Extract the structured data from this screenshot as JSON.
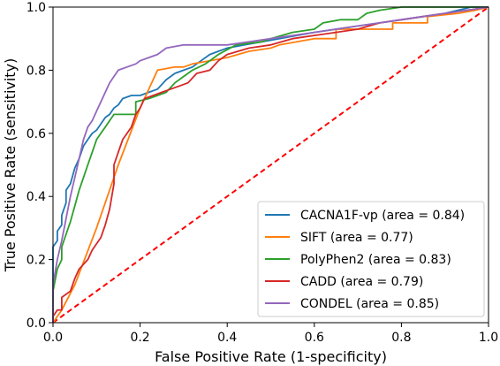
{
  "chart_data": {
    "type": "line",
    "title": "",
    "xlabel": "False Positive Rate (1-specificity)",
    "ylabel": "True Positive Rate (sensitivity)",
    "xlim": [
      0.0,
      1.0
    ],
    "ylim": [
      0.0,
      1.0
    ],
    "xticks": [
      "0.0",
      "0.2",
      "0.4",
      "0.6",
      "0.8",
      "1.0"
    ],
    "yticks": [
      "0.0",
      "0.2",
      "0.4",
      "0.6",
      "0.8",
      "1.0"
    ],
    "grid": false,
    "legend_position": "bottom-right",
    "diagonal": {
      "color": "#ff0000",
      "style": "dashed",
      "points": [
        [
          0,
          0
        ],
        [
          1,
          1
        ]
      ]
    },
    "series": [
      {
        "name": "CACNA1F-vp (area = 0.84)",
        "color": "#1f77b4",
        "points": [
          [
            0,
            0
          ],
          [
            0,
            0.24
          ],
          [
            0.01,
            0.26
          ],
          [
            0.01,
            0.29
          ],
          [
            0.02,
            0.31
          ],
          [
            0.02,
            0.34
          ],
          [
            0.03,
            0.38
          ],
          [
            0.03,
            0.42
          ],
          [
            0.04,
            0.44
          ],
          [
            0.05,
            0.49
          ],
          [
            0.06,
            0.52
          ],
          [
            0.07,
            0.56
          ],
          [
            0.08,
            0.58
          ],
          [
            0.09,
            0.6
          ],
          [
            0.1,
            0.61
          ],
          [
            0.11,
            0.63
          ],
          [
            0.12,
            0.65
          ],
          [
            0.13,
            0.66
          ],
          [
            0.14,
            0.68
          ],
          [
            0.15,
            0.69
          ],
          [
            0.16,
            0.71
          ],
          [
            0.18,
            0.72
          ],
          [
            0.2,
            0.72
          ],
          [
            0.22,
            0.73
          ],
          [
            0.24,
            0.74
          ],
          [
            0.26,
            0.77
          ],
          [
            0.28,
            0.79
          ],
          [
            0.3,
            0.8
          ],
          [
            0.32,
            0.81
          ],
          [
            0.34,
            0.83
          ],
          [
            0.36,
            0.85
          ],
          [
            0.38,
            0.86
          ],
          [
            0.4,
            0.87
          ],
          [
            0.44,
            0.88
          ],
          [
            0.48,
            0.89
          ],
          [
            0.52,
            0.9
          ],
          [
            0.56,
            0.91
          ],
          [
            0.6,
            0.92
          ],
          [
            0.65,
            0.93
          ],
          [
            0.7,
            0.94
          ],
          [
            0.75,
            0.95
          ],
          [
            0.8,
            0.96
          ],
          [
            0.85,
            0.97
          ],
          [
            0.9,
            0.98
          ],
          [
            0.93,
            0.99
          ],
          [
            0.96,
            1.0
          ],
          [
            1,
            1
          ]
        ]
      },
      {
        "name": "SIFT (area = 0.77)",
        "color": "#ff7f0e",
        "points": [
          [
            0,
            0
          ],
          [
            0.02,
            0.04
          ],
          [
            0.05,
            0.12
          ],
          [
            0.1,
            0.3
          ],
          [
            0.15,
            0.5
          ],
          [
            0.2,
            0.68
          ],
          [
            0.24,
            0.8
          ],
          [
            0.28,
            0.81
          ],
          [
            0.3,
            0.81
          ],
          [
            0.32,
            0.82
          ],
          [
            0.36,
            0.83
          ],
          [
            0.4,
            0.84
          ],
          [
            0.45,
            0.86
          ],
          [
            0.5,
            0.87
          ],
          [
            0.52,
            0.88
          ],
          [
            0.56,
            0.89
          ],
          [
            0.6,
            0.9
          ],
          [
            0.65,
            0.9
          ],
          [
            0.65,
            0.93
          ],
          [
            0.7,
            0.93
          ],
          [
            0.78,
            0.93
          ],
          [
            0.78,
            0.95
          ],
          [
            0.86,
            0.95
          ],
          [
            0.86,
            0.97
          ],
          [
            0.93,
            0.98
          ],
          [
            0.97,
            0.99
          ],
          [
            1,
            1
          ]
        ]
      },
      {
        "name": "PolyPhen2 (area = 0.83)",
        "color": "#2ca02c",
        "points": [
          [
            0,
            0
          ],
          [
            0,
            0.1
          ],
          [
            0.01,
            0.17
          ],
          [
            0.02,
            0.2
          ],
          [
            0.02,
            0.24
          ],
          [
            0.03,
            0.28
          ],
          [
            0.04,
            0.32
          ],
          [
            0.05,
            0.37
          ],
          [
            0.06,
            0.42
          ],
          [
            0.07,
            0.46
          ],
          [
            0.08,
            0.5
          ],
          [
            0.09,
            0.54
          ],
          [
            0.1,
            0.58
          ],
          [
            0.11,
            0.6
          ],
          [
            0.12,
            0.62
          ],
          [
            0.13,
            0.64
          ],
          [
            0.14,
            0.66
          ],
          [
            0.19,
            0.66
          ],
          [
            0.19,
            0.7
          ],
          [
            0.22,
            0.71
          ],
          [
            0.24,
            0.72
          ],
          [
            0.26,
            0.73
          ],
          [
            0.28,
            0.76
          ],
          [
            0.3,
            0.78
          ],
          [
            0.32,
            0.8
          ],
          [
            0.35,
            0.82
          ],
          [
            0.38,
            0.85
          ],
          [
            0.42,
            0.88
          ],
          [
            0.48,
            0.89
          ],
          [
            0.5,
            0.9
          ],
          [
            0.55,
            0.92
          ],
          [
            0.6,
            0.93
          ],
          [
            0.62,
            0.95
          ],
          [
            0.66,
            0.96
          ],
          [
            0.7,
            0.96
          ],
          [
            0.72,
            0.98
          ],
          [
            0.75,
            0.99
          ],
          [
            0.8,
            1.0
          ],
          [
            1,
            1
          ]
        ]
      },
      {
        "name": "CADD (area = 0.79)",
        "color": "#d62728",
        "points": [
          [
            0,
            0
          ],
          [
            0,
            0.02
          ],
          [
            0.01,
            0.04
          ],
          [
            0.02,
            0.04
          ],
          [
            0.02,
            0.08
          ],
          [
            0.04,
            0.1
          ],
          [
            0.05,
            0.14
          ],
          [
            0.06,
            0.17
          ],
          [
            0.08,
            0.2
          ],
          [
            0.09,
            0.23
          ],
          [
            0.1,
            0.25
          ],
          [
            0.11,
            0.27
          ],
          [
            0.12,
            0.31
          ],
          [
            0.13,
            0.36
          ],
          [
            0.14,
            0.44
          ],
          [
            0.14,
            0.5
          ],
          [
            0.15,
            0.54
          ],
          [
            0.16,
            0.58
          ],
          [
            0.18,
            0.62
          ],
          [
            0.19,
            0.66
          ],
          [
            0.2,
            0.68
          ],
          [
            0.21,
            0.71
          ],
          [
            0.23,
            0.72
          ],
          [
            0.25,
            0.73
          ],
          [
            0.27,
            0.74
          ],
          [
            0.29,
            0.75
          ],
          [
            0.31,
            0.76
          ],
          [
            0.33,
            0.79
          ],
          [
            0.36,
            0.8
          ],
          [
            0.38,
            0.83
          ],
          [
            0.4,
            0.85
          ],
          [
            0.45,
            0.87
          ],
          [
            0.5,
            0.88
          ],
          [
            0.55,
            0.9
          ],
          [
            0.6,
            0.91
          ],
          [
            0.65,
            0.92
          ],
          [
            0.7,
            0.93
          ],
          [
            0.75,
            0.95
          ],
          [
            0.8,
            0.96
          ],
          [
            0.85,
            0.97
          ],
          [
            0.9,
            0.98
          ],
          [
            0.95,
            0.99
          ],
          [
            1,
            1
          ]
        ]
      },
      {
        "name": "CONDEL (area = 0.85)",
        "color": "#9467bd",
        "points": [
          [
            0,
            0
          ],
          [
            0,
            0.12
          ],
          [
            0.01,
            0.2
          ],
          [
            0.02,
            0.26
          ],
          [
            0.03,
            0.33
          ],
          [
            0.04,
            0.4
          ],
          [
            0.05,
            0.46
          ],
          [
            0.06,
            0.52
          ],
          [
            0.07,
            0.58
          ],
          [
            0.08,
            0.62
          ],
          [
            0.09,
            0.64
          ],
          [
            0.1,
            0.67
          ],
          [
            0.11,
            0.7
          ],
          [
            0.12,
            0.73
          ],
          [
            0.13,
            0.76
          ],
          [
            0.14,
            0.78
          ],
          [
            0.15,
            0.8
          ],
          [
            0.17,
            0.81
          ],
          [
            0.19,
            0.82
          ],
          [
            0.2,
            0.83
          ],
          [
            0.22,
            0.84
          ],
          [
            0.24,
            0.85
          ],
          [
            0.26,
            0.87
          ],
          [
            0.3,
            0.88
          ],
          [
            0.35,
            0.88
          ],
          [
            0.4,
            0.88
          ],
          [
            0.45,
            0.89
          ],
          [
            0.5,
            0.9
          ],
          [
            0.55,
            0.91
          ],
          [
            0.6,
            0.92
          ],
          [
            0.65,
            0.93
          ],
          [
            0.7,
            0.94
          ],
          [
            0.75,
            0.95
          ],
          [
            0.8,
            0.96
          ],
          [
            0.85,
            0.97
          ],
          [
            0.9,
            0.98
          ],
          [
            0.95,
            0.99
          ],
          [
            1,
            1
          ]
        ]
      }
    ]
  }
}
